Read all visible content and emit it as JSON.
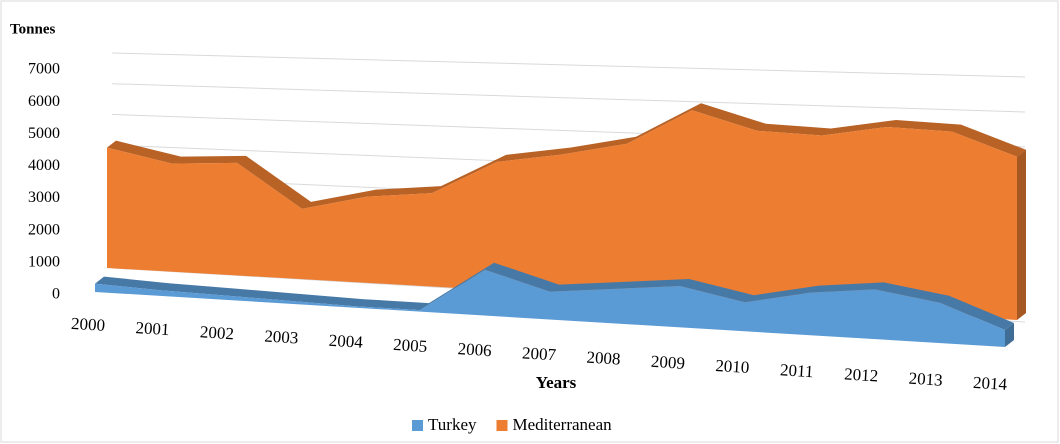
{
  "chart_data": {
    "type": "area3d",
    "y_label": "Tonnes",
    "x_label": "Years",
    "categories": [
      "2000",
      "2001",
      "2002",
      "2003",
      "2004",
      "2005",
      "2006",
      "2007",
      "2008",
      "2009",
      "2010",
      "2011",
      "2012",
      "2013",
      "2014"
    ],
    "series": [
      {
        "name": "Turkey",
        "color": "#5b9bd5",
        "values": [
          300,
          200,
          150,
          100,
          50,
          50,
          1500,
          900,
          1100,
          1300,
          900,
          1300,
          1500,
          1200,
          500
        ]
      },
      {
        "name": "Mediterranean",
        "color": "#ed7d31",
        "values": [
          4300,
          3800,
          3900,
          2400,
          2900,
          3100,
          4200,
          4500,
          4900,
          6000,
          5400,
          5300,
          5600,
          5500,
          4800
        ]
      }
    ],
    "ylim": [
      0,
      7000
    ],
    "yticks": [
      0,
      1000,
      2000,
      3000,
      4000,
      5000,
      6000,
      7000
    ],
    "grid": true,
    "legend": "bottom"
  }
}
